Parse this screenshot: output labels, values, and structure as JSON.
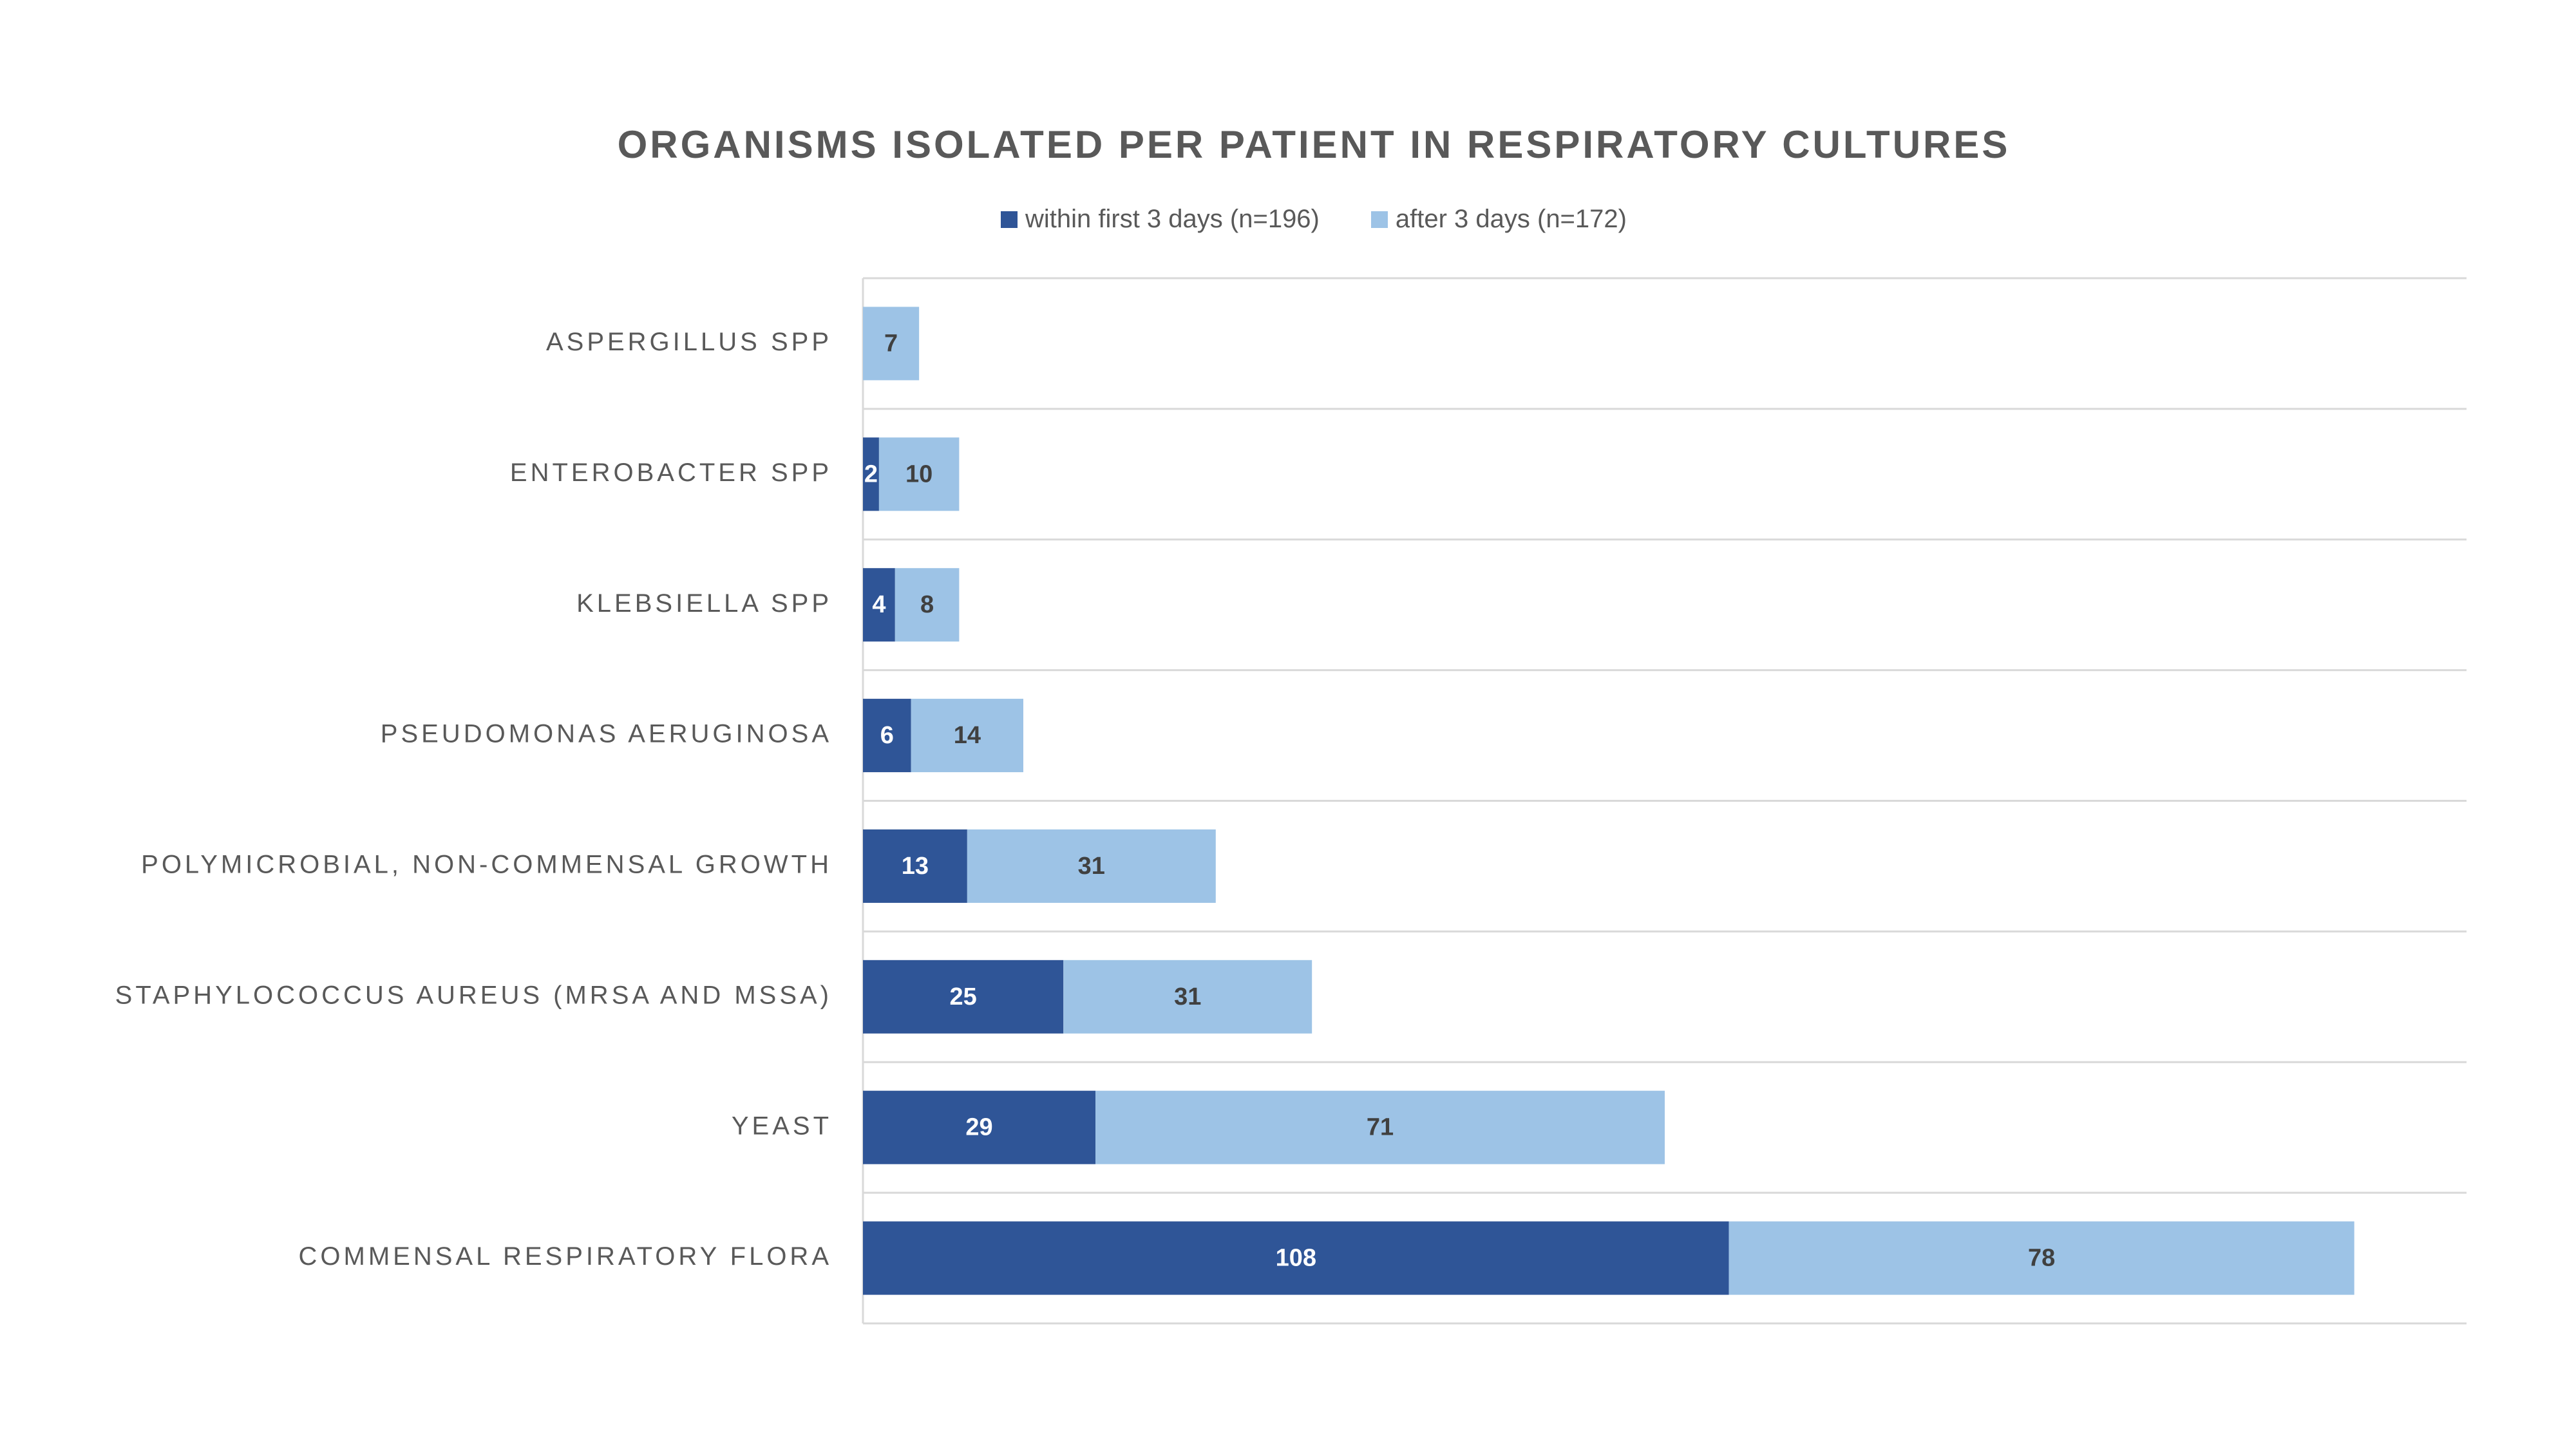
{
  "chart_data": {
    "type": "bar",
    "orientation": "horizontal",
    "stacked": true,
    "title": "ORGANISMS ISOLATED PER PATIENT IN RESPIRATORY CULTURES",
    "xlabel": "",
    "ylabel": "",
    "xlim": [
      0,
      200
    ],
    "grid": true,
    "legend_position": "top",
    "categories": [
      "ASPERGILLUS SPP",
      "ENTEROBACTER SPP",
      "KLEBSIELLA SPP",
      "PSEUDOMONAS AERUGINOSA",
      "POLYMICROBIAL, NON-COMMENSAL GROWTH",
      "STAPHYLOCOCCUS AUREUS (MRSA AND MSSA)",
      "YEAST",
      "COMMENSAL RESPIRATORY FLORA"
    ],
    "series": [
      {
        "name": "within first 3 days (n=196)",
        "color": "#2F5597",
        "label_color": "#ffffff",
        "values": [
          0,
          2,
          4,
          6,
          13,
          25,
          29,
          108
        ]
      },
      {
        "name": "after 3 days (n=172)",
        "color": "#9DC3E6",
        "label_color": "#404040",
        "values": [
          7,
          10,
          8,
          14,
          31,
          31,
          71,
          78
        ]
      }
    ]
  }
}
